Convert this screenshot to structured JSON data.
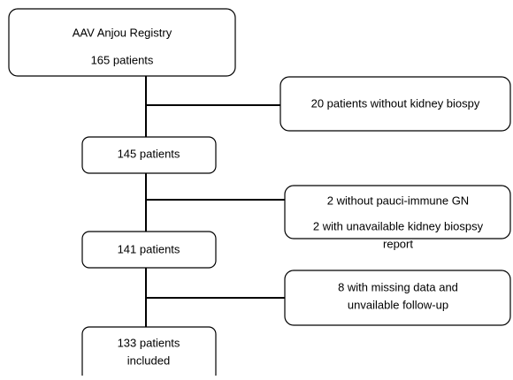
{
  "nodes": [
    {
      "lines": [
        "AAV Anjou Registry",
        "165 patients"
      ]
    },
    {
      "lines": [
        "20 patients without kidney biospy"
      ]
    },
    {
      "lines": [
        "145 patients"
      ]
    },
    {
      "lines": [
        "2 without pauci-immune GN",
        "2 with unavailable kidney biospsy",
        "report"
      ]
    },
    {
      "lines": [
        "141 patients"
      ]
    },
    {
      "lines": [
        "8 with missing data and",
        "unvailable follow-up"
      ]
    },
    {
      "lines": [
        "133 patients",
        "included"
      ]
    }
  ]
}
